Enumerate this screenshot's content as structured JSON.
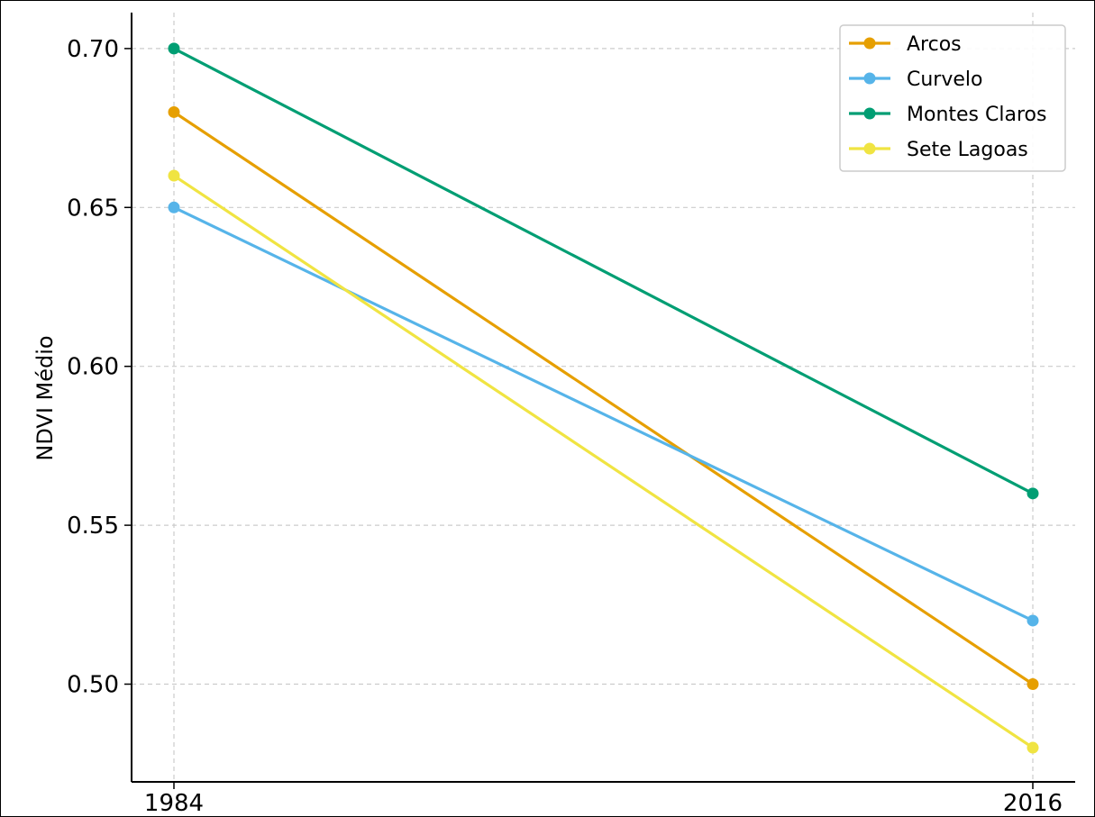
{
  "chart_data": {
    "type": "line",
    "title": "",
    "xlabel": "",
    "ylabel": "NDVI Médio",
    "x": [
      "1984",
      "2016"
    ],
    "yticks": [
      "0.50",
      "0.55",
      "0.60",
      "0.65",
      "0.70"
    ],
    "ylim": [
      0.47,
      0.71
    ],
    "grid": true,
    "legend": "top-right",
    "series": [
      {
        "name": "Arcos",
        "color": "#E69F00",
        "values": [
          0.68,
          0.5
        ]
      },
      {
        "name": "Curvelo",
        "color": "#56B4E9",
        "values": [
          0.65,
          0.52
        ]
      },
      {
        "name": "Montes Claros",
        "color": "#009E73",
        "values": [
          0.7,
          0.56
        ]
      },
      {
        "name": "Sete Lagoas",
        "color": "#F0E442",
        "values": [
          0.66,
          0.48
        ]
      }
    ]
  }
}
